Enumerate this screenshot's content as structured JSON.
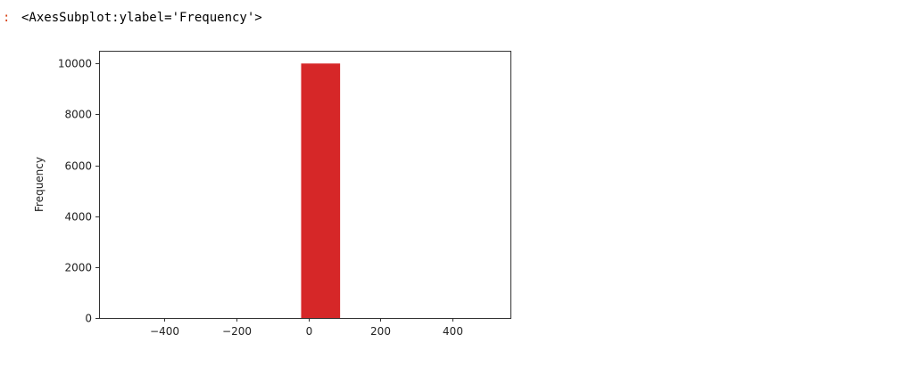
{
  "cell": {
    "prompt": ":",
    "output_repr": "<AxesSubplot:ylabel='Frequency'>"
  },
  "chart_data": {
    "type": "bar",
    "title": "",
    "xlabel": "",
    "ylabel": "Frequency",
    "xlim": [
      -580,
      560
    ],
    "ylim": [
      0,
      10500
    ],
    "x_ticks": [
      -400,
      -200,
      0,
      200,
      400
    ],
    "x_tick_labels": [
      "−400",
      "−200",
      "0",
      "200",
      "400"
    ],
    "y_ticks": [
      0,
      2000,
      4000,
      6000,
      8000,
      10000
    ],
    "y_tick_labels": [
      "0",
      "2000",
      "4000",
      "6000",
      "8000",
      "10000"
    ],
    "bins": [
      {
        "x0": -20,
        "x1": 88,
        "value": 10000
      }
    ],
    "color": "#d62728",
    "grid": false
  }
}
